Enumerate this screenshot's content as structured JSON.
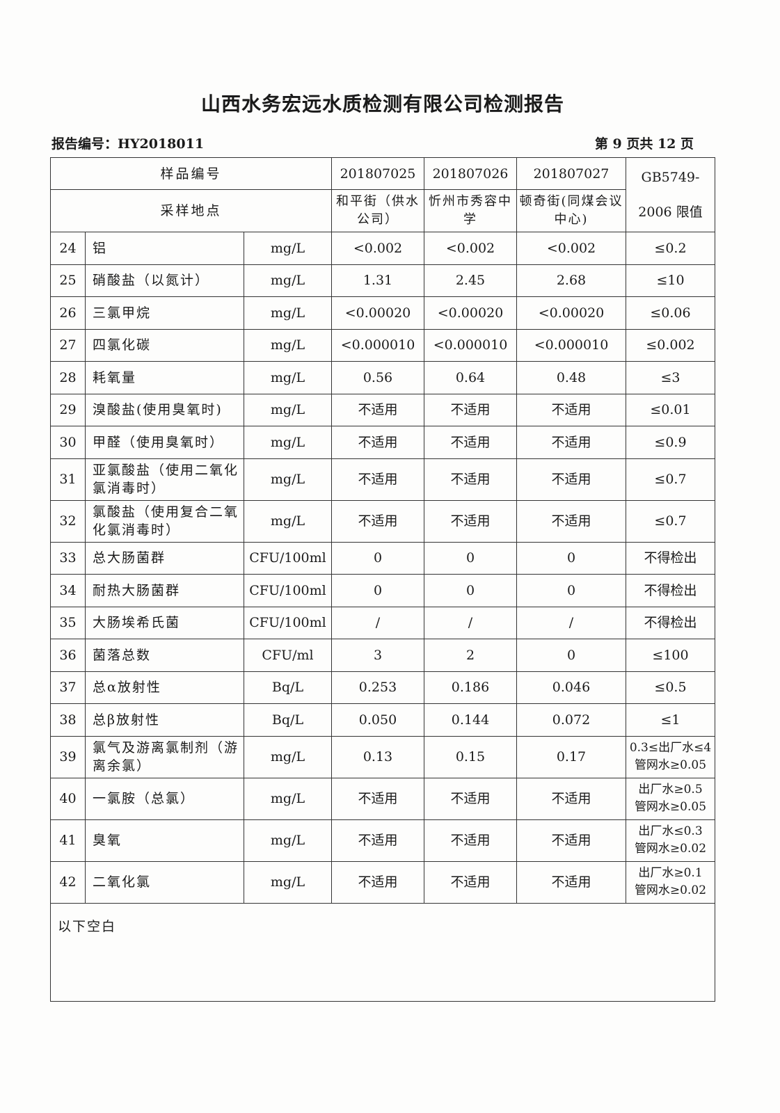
{
  "title": "山西水务宏远水质检测有限公司检测报告",
  "report_no": "报告编号：HY2018011",
  "page_no": "第 9 页共 12 页",
  "header": {
    "sample_no_label": "样品编号",
    "location_label": "采样地点",
    "samples": [
      "201807025",
      "201807026",
      "201807027"
    ],
    "locations": [
      "和平街（供水公司）",
      "忻州市秀容中学",
      "顿奇街(同煤会议中心)"
    ],
    "limit_label_1": "GB5749-",
    "limit_label_2": "2006 限值"
  },
  "rows": [
    {
      "no": "24",
      "item": "铝",
      "unit": "mg/L",
      "v": [
        "<0.002",
        "<0.002",
        "<0.002"
      ],
      "limit": [
        "≤0.2"
      ]
    },
    {
      "no": "25",
      "item": "硝酸盐（以氮计）",
      "unit": "mg/L",
      "v": [
        "1.31",
        "2.45",
        "2.68"
      ],
      "limit": [
        "≤10"
      ]
    },
    {
      "no": "26",
      "item": "三氯甲烷",
      "unit": "mg/L",
      "v": [
        "<0.00020",
        "<0.00020",
        "<0.00020"
      ],
      "limit": [
        "≤0.06"
      ]
    },
    {
      "no": "27",
      "item": "四氯化碳",
      "unit": "mg/L",
      "v": [
        "<0.000010",
        "<0.000010",
        "<0.000010"
      ],
      "limit": [
        "≤0.002"
      ]
    },
    {
      "no": "28",
      "item": "耗氧量",
      "unit": "mg/L",
      "v": [
        "0.56",
        "0.64",
        "0.48"
      ],
      "limit": [
        "≤3"
      ]
    },
    {
      "no": "29",
      "item": "溴酸盐(使用臭氧时)",
      "unit": "mg/L",
      "v": [
        "不适用",
        "不适用",
        "不适用"
      ],
      "limit": [
        "≤0.01"
      ]
    },
    {
      "no": "30",
      "item": "甲醛（使用臭氧时）",
      "unit": "mg/L",
      "v": [
        "不适用",
        "不适用",
        "不适用"
      ],
      "limit": [
        "≤0.9"
      ]
    },
    {
      "no": "31",
      "item": "亚氯酸盐（使用二氧化氯消毒时）",
      "unit": "mg/L",
      "v": [
        "不适用",
        "不适用",
        "不适用"
      ],
      "limit": [
        "≤0.7"
      ]
    },
    {
      "no": "32",
      "item": "氯酸盐（使用复合二氧化氯消毒时）",
      "unit": "mg/L",
      "v": [
        "不适用",
        "不适用",
        "不适用"
      ],
      "limit": [
        "≤0.7"
      ]
    },
    {
      "no": "33",
      "item": "总大肠菌群",
      "unit": "CFU/100ml",
      "v": [
        "0",
        "0",
        "0"
      ],
      "limit": [
        "不得检出"
      ]
    },
    {
      "no": "34",
      "item": "耐热大肠菌群",
      "unit": "CFU/100ml",
      "v": [
        "0",
        "0",
        "0"
      ],
      "limit": [
        "不得检出"
      ]
    },
    {
      "no": "35",
      "item": "大肠埃希氏菌",
      "unit": "CFU/100ml",
      "v": [
        "/",
        "/",
        "/"
      ],
      "limit": [
        "不得检出"
      ]
    },
    {
      "no": "36",
      "item": "菌落总数",
      "unit": "CFU/ml",
      "v": [
        "3",
        "2",
        "0"
      ],
      "limit": [
        "≤100"
      ]
    },
    {
      "no": "37",
      "item": "总α放射性",
      "unit": "Bq/L",
      "v": [
        "0.253",
        "0.186",
        "0.046"
      ],
      "limit": [
        "≤0.5"
      ]
    },
    {
      "no": "38",
      "item": "总β放射性",
      "unit": "Bq/L",
      "v": [
        "0.050",
        "0.144",
        "0.072"
      ],
      "limit": [
        "≤1"
      ]
    },
    {
      "no": "39",
      "item": "氯气及游离氯制剂（游离余氯）",
      "unit": "mg/L",
      "v": [
        "0.13",
        "0.15",
        "0.17"
      ],
      "limit": [
        "0.3≤出厂水≤4",
        "管网水≥0.05"
      ]
    },
    {
      "no": "40",
      "item": "一氯胺（总氯）",
      "unit": "mg/L",
      "v": [
        "不适用",
        "不适用",
        "不适用"
      ],
      "limit": [
        "出厂水≥0.5",
        "管网水≥0.05"
      ]
    },
    {
      "no": "41",
      "item": "臭氧",
      "unit": "mg/L",
      "v": [
        "不适用",
        "不适用",
        "不适用"
      ],
      "limit": [
        "出厂水≤0.3",
        "管网水≥0.02"
      ]
    },
    {
      "no": "42",
      "item": "二氧化氯",
      "unit": "mg/L",
      "v": [
        "不适用",
        "不适用",
        "不适用"
      ],
      "limit": [
        "出厂水≥0.1",
        "管网水≥0.02"
      ]
    }
  ],
  "footer_note": "以下空白"
}
